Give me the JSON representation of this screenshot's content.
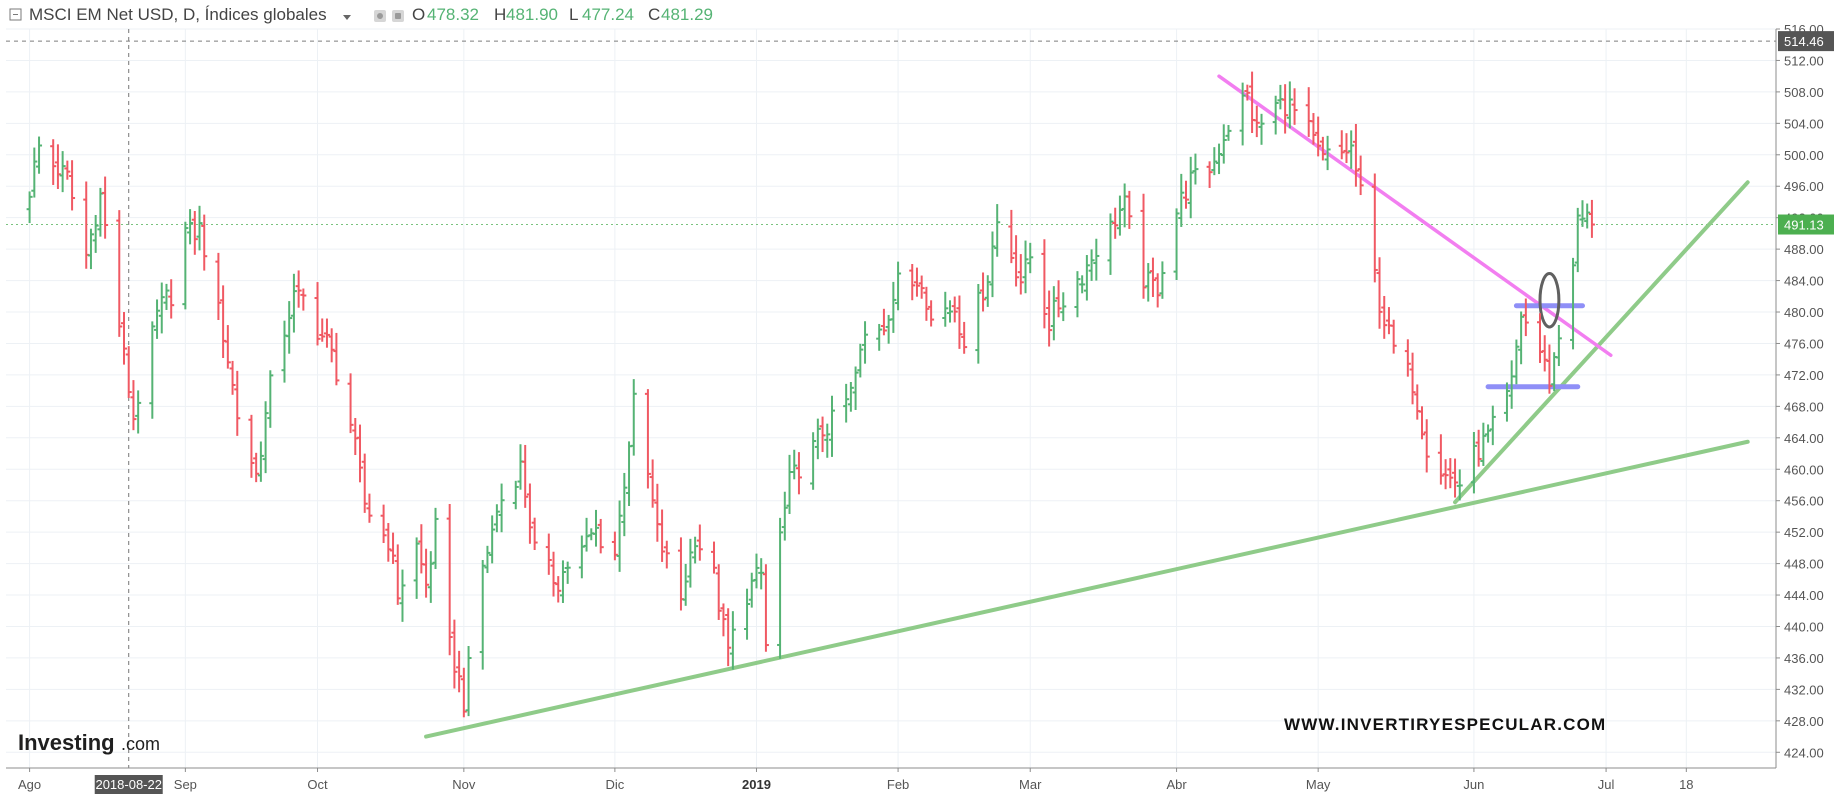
{
  "header": {
    "symbol_icon": "collapse-square-icon",
    "title": "MSCI EM Net USD, D, Índices globales",
    "dropdown_icon": "chevron-down-icon",
    "ohlc": {
      "open_label": "O",
      "open_value": "478.32",
      "high_label": "H",
      "high_value": "481.90",
      "low_label": "L",
      "low_value": "477.24",
      "close_label": "C",
      "close_value": "481.29"
    }
  },
  "brand": {
    "logo_text": "Investing",
    "logo_suffix": ".com",
    "watermark": "WWW.INVERTIRYESPECULAR.COM"
  },
  "colors": {
    "up": "#55b374",
    "down": "#f05963",
    "magenta_trendline": "#f27ef0",
    "green_trendline": "#8fcb89",
    "blue_level": "#8f8ff7",
    "ellipse": "#606060",
    "current_price_bg": "#4caf50",
    "high_line": "#7e7e7e"
  },
  "chart_data": {
    "type": "ohlc",
    "title": "MSCI EM Net USD, D, Índices globales",
    "xlabel": "",
    "ylabel": "",
    "grid": true,
    "ylim": [
      422,
      516
    ],
    "x_axis_labels": [
      "Ago",
      "2018-08-22",
      "Sep",
      "Oct",
      "Nov",
      "Dic",
      "2019",
      "Feb",
      "Mar",
      "Abr",
      "May",
      "Jun",
      "Jul",
      "18"
    ],
    "highlighted_x_label": "2018-08-22",
    "y_ticks": [
      "424.00",
      "428.00",
      "432.00",
      "436.00",
      "440.00",
      "444.00",
      "448.00",
      "452.00",
      "456.00",
      "460.00",
      "464.00",
      "468.00",
      "472.00",
      "476.00",
      "480.00",
      "484.00",
      "488.00",
      "492.00",
      "496.00",
      "500.00",
      "504.00",
      "508.00",
      "512.00",
      "516.00"
    ],
    "price_labels": {
      "high_marker": "514.46",
      "current": "491.13"
    },
    "anchors": [
      [
        "2018-08-01",
        495.6
      ],
      [
        "2018-08-03",
        500.2
      ],
      [
        "2018-08-06",
        498.0
      ],
      [
        "2018-08-09",
        497.8
      ],
      [
        "2018-08-13",
        487.7
      ],
      [
        "2018-08-16",
        494.0
      ],
      [
        "2018-08-20",
        478.2
      ],
      [
        "2018-08-23",
        467.4
      ],
      [
        "2018-08-28",
        479.0
      ],
      [
        "2018-08-31",
        482.0
      ],
      [
        "2018-09-03",
        490.6
      ],
      [
        "2018-09-06",
        491.0
      ],
      [
        "2018-09-11",
        476.5
      ],
      [
        "2018-09-14",
        467.2
      ],
      [
        "2018-09-18",
        460.0
      ],
      [
        "2018-09-21",
        470.0
      ],
      [
        "2018-09-26",
        481.6
      ],
      [
        "2018-09-28",
        482.4
      ],
      [
        "2018-10-03",
        476.1
      ],
      [
        "2018-10-08",
        465.2
      ],
      [
        "2018-10-11",
        456.4
      ],
      [
        "2018-10-16",
        451.0
      ],
      [
        "2018-10-18",
        443.4
      ],
      [
        "2018-10-22",
        450.0
      ],
      [
        "2018-10-24",
        446.0
      ],
      [
        "2018-10-26",
        452.8
      ],
      [
        "2018-10-29",
        437.2
      ],
      [
        "2018-11-01",
        429.8
      ],
      [
        "2018-11-05",
        448.0
      ],
      [
        "2018-11-08",
        455.2
      ],
      [
        "2018-11-13",
        459.5
      ],
      [
        "2018-11-16",
        450.1
      ],
      [
        "2018-11-21",
        446.2
      ],
      [
        "2018-11-26",
        448.8
      ],
      [
        "2018-11-29",
        452.6
      ],
      [
        "2018-12-03",
        450.0
      ],
      [
        "2018-12-05",
        458.5
      ],
      [
        "2018-12-07",
        467.5
      ],
      [
        "2018-12-12",
        452.4
      ],
      [
        "2018-12-17",
        444.0
      ],
      [
        "2018-12-20",
        450.8
      ],
      [
        "2018-12-24",
        446.2
      ],
      [
        "2018-12-27",
        437.6
      ],
      [
        "2018-12-31",
        444.0
      ],
      [
        "2019-01-03",
        446.0
      ],
      [
        "2019-01-04",
        437.4
      ],
      [
        "2019-01-07",
        452.0
      ],
      [
        "2019-01-09",
        459.0
      ],
      [
        "2019-01-14",
        462.0
      ],
      [
        "2019-01-17",
        465.4
      ],
      [
        "2019-01-22",
        470.4
      ],
      [
        "2019-01-25",
        476.2
      ],
      [
        "2019-01-29",
        478.0
      ],
      [
        "2019-02-01",
        484.5
      ],
      [
        "2019-02-06",
        484.3
      ],
      [
        "2019-02-08",
        478.1
      ],
      [
        "2019-02-13",
        481.0
      ],
      [
        "2019-02-15",
        477.5
      ],
      [
        "2019-02-20",
        484.0
      ],
      [
        "2019-02-22",
        490.9
      ],
      [
        "2019-02-27",
        484.9
      ],
      [
        "2019-03-01",
        487.4
      ],
      [
        "2019-03-05",
        478.0
      ],
      [
        "2019-03-08",
        481.6
      ],
      [
        "2019-03-13",
        486.6
      ],
      [
        "2019-03-18",
        490.0
      ],
      [
        "2019-03-21",
        493.5
      ],
      [
        "2019-03-25",
        485.0
      ],
      [
        "2019-03-28",
        483.0
      ],
      [
        "2019-04-01",
        492.0
      ],
      [
        "2019-04-04",
        497.2
      ],
      [
        "2019-04-09",
        499.5
      ],
      [
        "2019-04-12",
        503.0
      ],
      [
        "2019-04-16",
        507.4
      ],
      [
        "2019-04-18",
        504.0
      ],
      [
        "2019-04-22",
        506.5
      ],
      [
        "2019-04-25",
        505.4
      ],
      [
        "2019-04-29",
        503.0
      ],
      [
        "2019-05-02",
        500.1
      ],
      [
        "2019-05-06",
        499.8
      ],
      [
        "2019-05-08",
        500.0
      ],
      [
        "2019-05-10",
        494.9
      ],
      [
        "2019-05-14",
        482.0
      ],
      [
        "2019-05-17",
        475.0
      ],
      [
        "2019-05-21",
        470.3
      ],
      [
        "2019-05-24",
        463.5
      ],
      [
        "2019-05-28",
        459.8
      ],
      [
        "2019-05-31",
        457.5
      ],
      [
        "2019-06-04",
        462.0
      ],
      [
        "2019-06-07",
        466.0
      ],
      [
        "2019-06-11",
        471.0
      ],
      [
        "2019-06-13",
        479.0
      ],
      [
        "2019-06-17",
        474.5
      ],
      [
        "2019-06-19",
        472.0
      ],
      [
        "2019-06-21",
        477.6
      ],
      [
        "2019-06-24",
        487.0
      ],
      [
        "2019-06-25",
        491.0
      ],
      [
        "2019-06-28",
        491.13
      ]
    ],
    "annotations": {
      "magenta_downtrend": [
        [
          "2019-04-10",
          510.0
        ],
        [
          "2019-07-02",
          474.5
        ]
      ],
      "green_long_support": [
        [
          "2018-10-24",
          426.0
        ],
        [
          "2019-07-31",
          463.5
        ]
      ],
      "green_short_support": [
        [
          "2019-05-30",
          455.8
        ],
        [
          "2019-07-31",
          496.5
        ]
      ],
      "blue_level_high": [
        [
          "2019-06-12",
          480.8
        ],
        [
          "2019-06-26",
          480.8
        ]
      ],
      "blue_level_low": [
        [
          "2019-06-06",
          470.5
        ],
        [
          "2019-06-25",
          470.5
        ]
      ],
      "breakout_ellipse": [
        "2019-06-19",
        481.5,
        2.8,
        3.4
      ]
    }
  }
}
